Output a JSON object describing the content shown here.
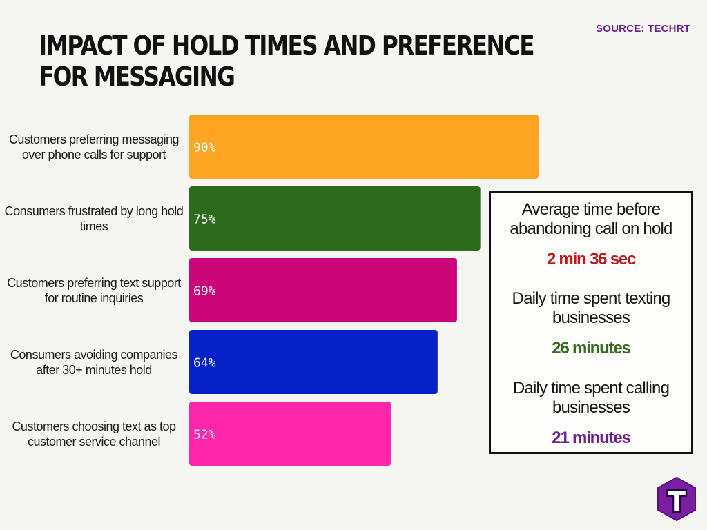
{
  "header": {
    "title_line1": "IMPACT OF HOLD TIMES AND PREFERENCE",
    "title_line2": "FOR MESSAGING",
    "source": "SOURCE: TECHRT"
  },
  "chart_data": {
    "type": "bar",
    "orientation": "horizontal",
    "categories": [
      "Customers preferring messaging over phone calls for support",
      "Consumers frustrated by long hold times",
      "Customers preferring text support for routine inquiries",
      "Consumers avoiding companies after 30+ minutes hold",
      "Customers choosing text as top customer service channel"
    ],
    "values": [
      90,
      75,
      69,
      64,
      52
    ],
    "value_labels": [
      "90%",
      "75%",
      "69%",
      "64%",
      "52%"
    ],
    "colors": [
      "#fea523",
      "#2e6a1e",
      "#cc0579",
      "#0422c7",
      "#fe27ac"
    ],
    "xlim": [
      0,
      100
    ],
    "grid": false,
    "legend": "none"
  },
  "stats": [
    {
      "label": "Average time before abandoning call on hold",
      "value": "2 min 36 sec",
      "color": "#c0171d"
    },
    {
      "label": "Daily time spent texting businesses",
      "value": "26 minutes",
      "color": "#356b1e"
    },
    {
      "label": "Daily time spent calling businesses",
      "value": "21 minutes",
      "color": "#6b1f8f"
    }
  ],
  "logo": {
    "icon": "t-hexagon-logo-icon",
    "color": "#7a1fa2"
  }
}
